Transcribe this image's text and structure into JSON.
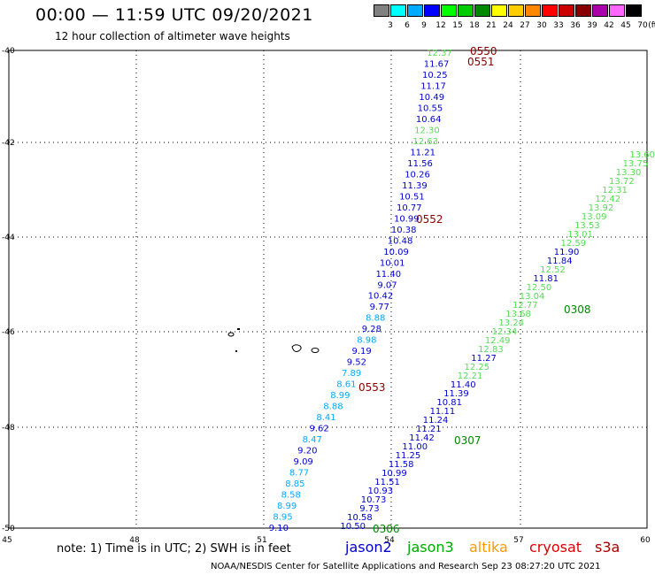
{
  "header": {
    "title": "00:00 — 11:59 UTC 09/20/2021",
    "subtitle": "12 hour collection of altimeter wave heights"
  },
  "colorbar": {
    "colors": [
      "#808080",
      "#00ffff",
      "#00aaff",
      "#0000ff",
      "#00ff00",
      "#00cc00",
      "#008800",
      "#ffff00",
      "#ffcc00",
      "#ff8800",
      "#ff0000",
      "#cc0000",
      "#880000",
      "#aa00aa",
      "#ff66ff",
      "#000000"
    ],
    "labels": [
      "3",
      "6",
      "9",
      "12",
      "15",
      "18",
      "21",
      "24",
      "27",
      "30",
      "33",
      "36",
      "39",
      "42",
      "45",
      "70"
    ],
    "unit": "(ft)"
  },
  "axes": {
    "lat_labels": [
      "-40",
      "-42",
      "-44",
      "-46",
      "-48",
      "-50"
    ],
    "lon_labels": [
      "45",
      "48",
      "51",
      "54",
      "57",
      "60"
    ]
  },
  "tracks": [
    {
      "name": "jason2",
      "times": [
        "0550",
        "0551",
        "0552",
        "0553"
      ],
      "time_color": "#880000",
      "values": [
        "12.37",
        "11.67",
        "10.25",
        "11.17",
        "10.49",
        "10.55",
        "10.64",
        "12.30",
        "12.63",
        "11.21",
        "11.56",
        "10.26",
        "11.39",
        "10.51",
        "10.77",
        "10.99",
        "10.38",
        "10.48",
        "10.09",
        "10.01",
        "11.40",
        "9.07",
        "10.42",
        "9.77",
        "8.88",
        "9.28",
        "8.98",
        "9.19",
        "9.52",
        "7.89",
        "8.61",
        "8.99",
        "8.88",
        "8.41",
        "9.62",
        "8.47",
        "9.20",
        "9.09",
        "8.77",
        "8.85",
        "8.58",
        "8.99",
        "8.95",
        "9.10"
      ]
    },
    {
      "name": "jason3",
      "times": [
        "0306",
        "0307",
        "0308"
      ],
      "time_color": "#008800",
      "values": [
        "10.50",
        "10.58",
        "9.73",
        "10.73",
        "10.93",
        "11.51",
        "10.99",
        "11.58",
        "11.25",
        "11.00",
        "11.42",
        "11.21",
        "11.24",
        "11.11",
        "10.81",
        "11.39",
        "11.40",
        "12.21",
        "12.25",
        "11.27",
        "12.83",
        "12.49",
        "12.34",
        "13.24",
        "13.68",
        "12.77",
        "13.04",
        "12.50",
        "11.81",
        "12.52",
        "11.84",
        "11.90",
        "12.59",
        "13.01",
        "13.53",
        "13.09",
        "13.92",
        "12.42",
        "12.31",
        "13.72",
        "13.30",
        "13.75",
        "13.60"
      ]
    }
  ],
  "note": "note: 1) Time is in UTC; 2) SWH is in feet",
  "satellites": [
    {
      "name": "jason2",
      "color": "#0000cc"
    },
    {
      "name": "jason3",
      "color": "#00aa00"
    },
    {
      "name": "altika",
      "color": "#ff9900"
    },
    {
      "name": "cryosat",
      "color": "#dd0000"
    },
    {
      "name": "s3a",
      "color": "#aa0000"
    }
  ],
  "credit": "NOAA/NESDIS Center for Satellite Applications and Research   Sep 23 08:27:20 UTC 2021"
}
